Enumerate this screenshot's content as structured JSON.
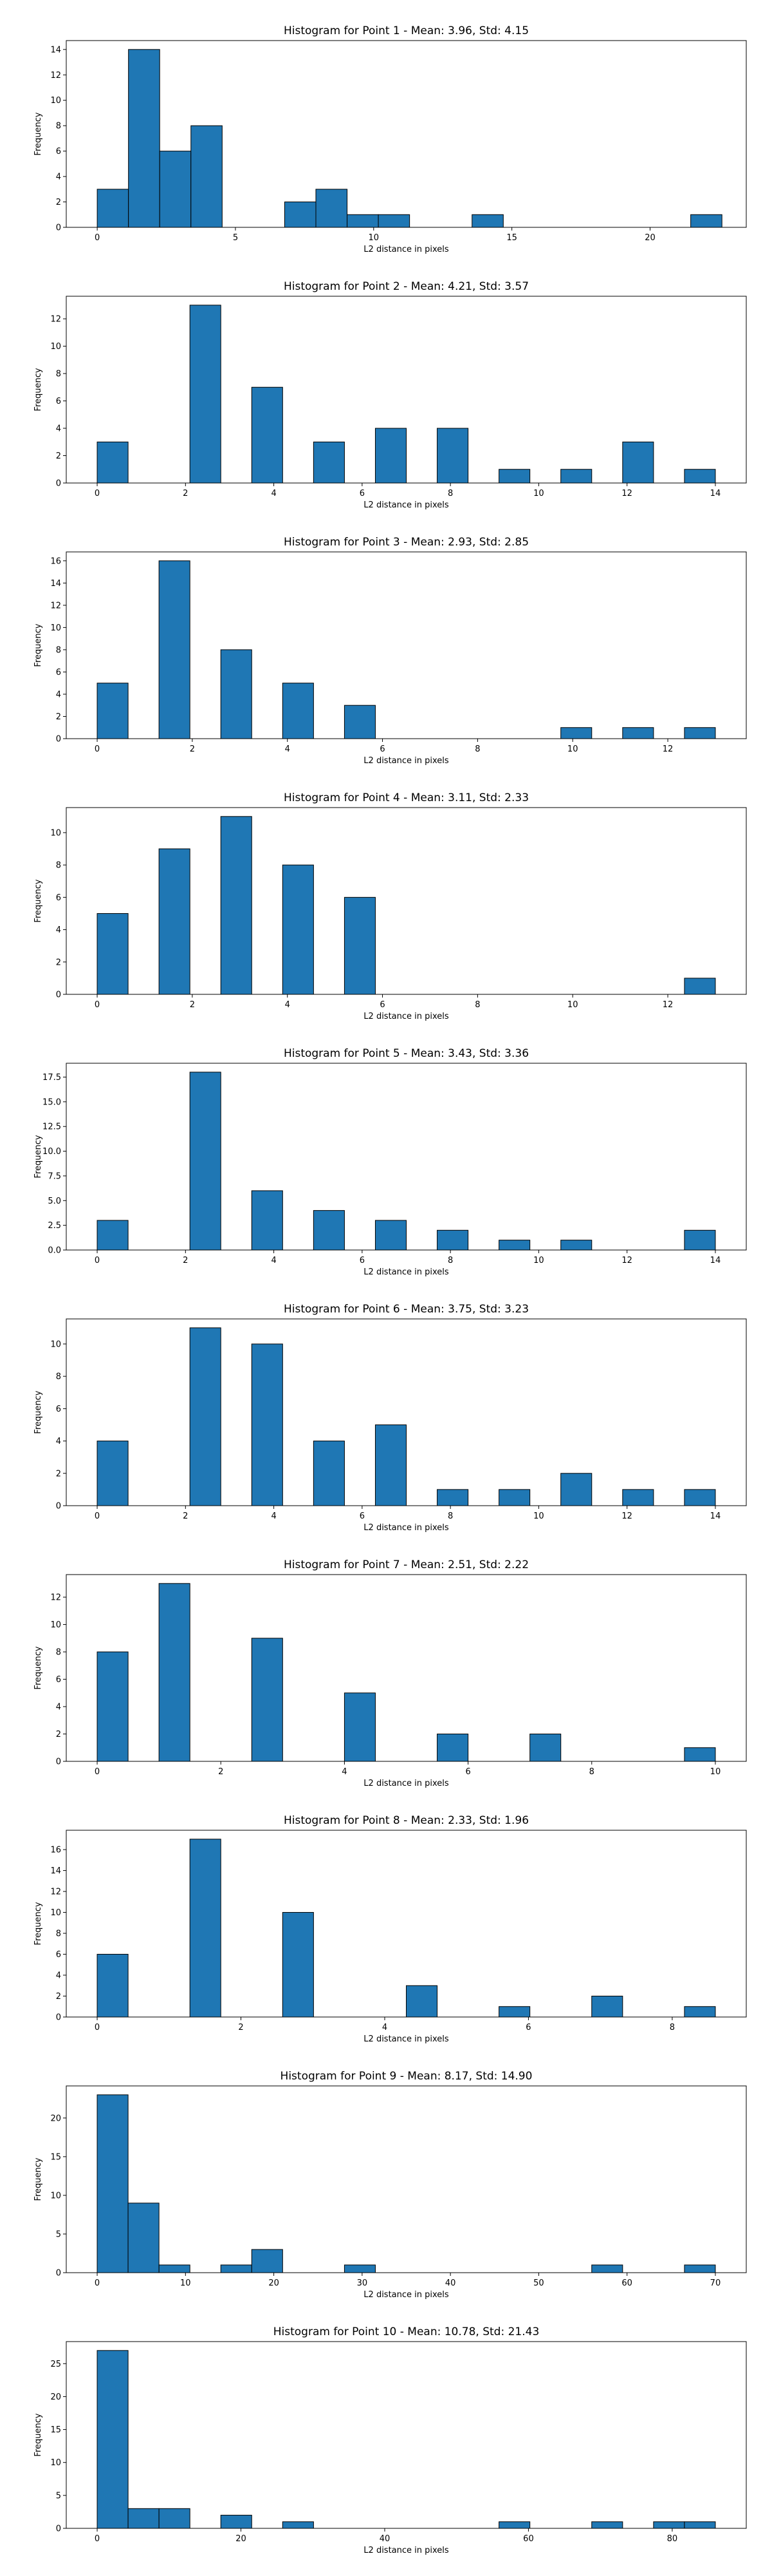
{
  "chart_data": [
    {
      "type": "bar",
      "title": "Histogram for Point 1 - Mean: 3.96, Std: 4.15",
      "xlabel": "L2 distance in pixels",
      "ylabel": "Frequency",
      "xlim": [
        -1.12,
        23.48
      ],
      "ylim": [
        0,
        14.7
      ],
      "xticks": [
        0,
        5,
        10,
        15,
        20
      ],
      "yticks": [
        0,
        2,
        4,
        6,
        8,
        10,
        12,
        14
      ],
      "bin_edges": [
        0,
        1.13,
        2.26,
        3.39,
        4.52,
        5.65,
        6.78,
        7.91,
        9.04,
        10.17,
        11.3,
        12.43,
        13.56,
        14.69,
        15.82,
        16.95,
        18.08,
        19.21,
        20.34,
        21.47,
        22.6
      ],
      "values": [
        3,
        14,
        6,
        8,
        0,
        0,
        2,
        3,
        1,
        1,
        0,
        0,
        1,
        0,
        0,
        0,
        0,
        0,
        0,
        1
      ]
    },
    {
      "type": "bar",
      "title": "Histogram for Point 2 - Mean: 4.21, Std: 3.57",
      "xlabel": "L2 distance in pixels",
      "ylabel": "Frequency",
      "xlim": [
        -0.7,
        14.7
      ],
      "ylim": [
        0,
        13.65
      ],
      "xticks": [
        0,
        2,
        4,
        6,
        8,
        10,
        12,
        14
      ],
      "yticks": [
        0,
        2,
        4,
        6,
        8,
        10,
        12
      ],
      "bin_edges": [
        0,
        0.7,
        1.4,
        2.1,
        2.8,
        3.5,
        4.2,
        4.9,
        5.6,
        6.3,
        7.0,
        7.7,
        8.4,
        9.1,
        9.8,
        10.5,
        11.2,
        11.9,
        12.6,
        13.3,
        14.0
      ],
      "values": [
        3,
        0,
        0,
        13,
        0,
        7,
        0,
        3,
        0,
        4,
        0,
        4,
        0,
        1,
        0,
        1,
        0,
        3,
        0,
        1
      ]
    },
    {
      "type": "bar",
      "title": "Histogram for Point 3 - Mean: 2.93, Std: 2.85",
      "xlabel": "L2 distance in pixels",
      "ylabel": "Frequency",
      "xlim": [
        -0.65,
        13.65
      ],
      "ylim": [
        0,
        16.8
      ],
      "xticks": [
        0,
        2,
        4,
        6,
        8,
        10,
        12
      ],
      "yticks": [
        0,
        2,
        4,
        6,
        8,
        10,
        12,
        14,
        16
      ],
      "bin_edges": [
        0,
        0.65,
        1.3,
        1.95,
        2.6,
        3.25,
        3.9,
        4.55,
        5.2,
        5.85,
        6.5,
        7.15,
        7.8,
        8.45,
        9.1,
        9.75,
        10.4,
        11.05,
        11.7,
        12.35,
        13.0
      ],
      "values": [
        5,
        0,
        16,
        0,
        8,
        0,
        5,
        0,
        3,
        0,
        0,
        0,
        0,
        0,
        0,
        1,
        0,
        1,
        0,
        1
      ]
    },
    {
      "type": "bar",
      "title": "Histogram for Point 4 - Mean: 3.11, Std: 2.33",
      "xlabel": "L2 distance in pixels",
      "ylabel": "Frequency",
      "xlim": [
        -0.65,
        13.65
      ],
      "ylim": [
        0,
        11.55
      ],
      "xticks": [
        0,
        2,
        4,
        6,
        8,
        10,
        12
      ],
      "yticks": [
        0,
        2,
        4,
        6,
        8,
        10
      ],
      "bin_edges": [
        0,
        0.65,
        1.3,
        1.95,
        2.6,
        3.25,
        3.9,
        4.55,
        5.2,
        5.85,
        6.5,
        7.15,
        7.8,
        8.45,
        9.1,
        9.75,
        10.4,
        11.05,
        11.7,
        12.35,
        13.0
      ],
      "values": [
        5,
        0,
        9,
        0,
        11,
        0,
        8,
        0,
        6,
        0,
        0,
        0,
        0,
        0,
        0,
        0,
        0,
        0,
        0,
        1
      ]
    },
    {
      "type": "bar",
      "title": "Histogram for Point 5 - Mean: 3.43, Std: 3.36",
      "xlabel": "L2 distance in pixels",
      "ylabel": "Frequency",
      "xlim": [
        -0.7,
        14.7
      ],
      "ylim": [
        0,
        18.9
      ],
      "xticks": [
        0,
        2,
        4,
        6,
        8,
        10,
        12,
        14
      ],
      "yticks": [
        "0.0",
        "2.5",
        "5.0",
        "7.5",
        "10.0",
        "12.5",
        "15.0",
        "17.5"
      ],
      "bin_edges": [
        0,
        0.7,
        1.4,
        2.1,
        2.8,
        3.5,
        4.2,
        4.9,
        5.6,
        6.3,
        7.0,
        7.7,
        8.4,
        9.1,
        9.8,
        10.5,
        11.2,
        11.9,
        12.6,
        13.3,
        14.0
      ],
      "values": [
        3,
        0,
        0,
        18,
        0,
        6,
        0,
        4,
        0,
        3,
        0,
        2,
        0,
        1,
        0,
        1,
        0,
        0,
        0,
        2
      ]
    },
    {
      "type": "bar",
      "title": "Histogram for Point 6 - Mean: 3.75, Std: 3.23",
      "xlabel": "L2 distance in pixels",
      "ylabel": "Frequency",
      "xlim": [
        -0.7,
        14.7
      ],
      "ylim": [
        0,
        11.55
      ],
      "xticks": [
        0,
        2,
        4,
        6,
        8,
        10,
        12,
        14
      ],
      "yticks": [
        0,
        2,
        4,
        6,
        8,
        10
      ],
      "bin_edges": [
        0,
        0.7,
        1.4,
        2.1,
        2.8,
        3.5,
        4.2,
        4.9,
        5.6,
        6.3,
        7.0,
        7.7,
        8.4,
        9.1,
        9.8,
        10.5,
        11.2,
        11.9,
        12.6,
        13.3,
        14.0
      ],
      "values": [
        4,
        0,
        0,
        11,
        0,
        10,
        0,
        4,
        0,
        5,
        0,
        1,
        0,
        1,
        0,
        2,
        0,
        1,
        0,
        1
      ]
    },
    {
      "type": "bar",
      "title": "Histogram for Point 7 - Mean: 2.51, Std: 2.22",
      "xlabel": "L2 distance in pixels",
      "ylabel": "Frequency",
      "xlim": [
        -0.5,
        10.5
      ],
      "ylim": [
        0,
        13.65
      ],
      "xticks": [
        0,
        2,
        4,
        6,
        8,
        10
      ],
      "yticks": [
        0,
        2,
        4,
        6,
        8,
        10,
        12
      ],
      "bin_edges": [
        0,
        0.5,
        1.0,
        1.5,
        2.0,
        2.5,
        3.0,
        3.5,
        4.0,
        4.5,
        5.0,
        5.5,
        6.0,
        6.5,
        7.0,
        7.5,
        8.0,
        8.5,
        9.0,
        9.5,
        10.0
      ],
      "values": [
        8,
        0,
        13,
        0,
        0,
        9,
        0,
        0,
        5,
        0,
        0,
        2,
        0,
        0,
        2,
        0,
        0,
        0,
        0,
        1
      ]
    },
    {
      "type": "bar",
      "title": "Histogram for Point 8 - Mean: 2.33, Std: 1.96",
      "xlabel": "L2 distance in pixels",
      "ylabel": "Frequency",
      "xlim": [
        -0.43,
        9.03
      ],
      "ylim": [
        0,
        17.85
      ],
      "xticks": [
        0,
        2,
        4,
        6,
        8
      ],
      "yticks": [
        0,
        2,
        4,
        6,
        8,
        10,
        12,
        14,
        16
      ],
      "bin_edges": [
        0,
        0.43,
        0.86,
        1.29,
        1.72,
        2.15,
        2.58,
        3.01,
        3.44,
        3.87,
        4.3,
        4.73,
        5.16,
        5.59,
        6.02,
        6.45,
        6.88,
        7.31,
        7.74,
        8.17,
        8.6
      ],
      "values": [
        6,
        0,
        0,
        17,
        0,
        0,
        10,
        0,
        0,
        0,
        3,
        0,
        0,
        1,
        0,
        0,
        2,
        0,
        0,
        1
      ]
    },
    {
      "type": "bar",
      "title": "Histogram for Point 9 - Mean: 8.17, Std: 14.90",
      "xlabel": "L2 distance in pixels",
      "ylabel": "Frequency",
      "xlim": [
        -3.5,
        73.5
      ],
      "ylim": [
        0,
        24.15
      ],
      "xticks": [
        0,
        10,
        20,
        30,
        40,
        50,
        60,
        70
      ],
      "yticks": [
        0,
        5,
        10,
        15,
        20
      ],
      "bin_edges": [
        0,
        3.5,
        7.0,
        10.5,
        14.0,
        17.5,
        21.0,
        24.5,
        28.0,
        31.5,
        35.0,
        38.5,
        42.0,
        45.5,
        49.0,
        52.5,
        56.0,
        59.5,
        63.0,
        66.5,
        70.0
      ],
      "values": [
        23,
        9,
        1,
        0,
        1,
        3,
        0,
        0,
        1,
        0,
        0,
        0,
        0,
        0,
        0,
        0,
        1,
        0,
        0,
        1
      ]
    },
    {
      "type": "bar",
      "title": "Histogram for Point 10 - Mean: 10.78, Std: 21.43",
      "xlabel": "L2 distance in pixels",
      "ylabel": "Frequency",
      "xlim": [
        -4.3,
        90.3
      ],
      "ylim": [
        0,
        28.35
      ],
      "xticks": [
        0,
        20,
        40,
        60,
        80
      ],
      "yticks": [
        0,
        5,
        10,
        15,
        20,
        25
      ],
      "bin_edges": [
        0,
        4.3,
        8.6,
        12.9,
        17.2,
        21.5,
        25.8,
        30.1,
        34.4,
        38.7,
        43.0,
        47.3,
        51.6,
        55.9,
        60.2,
        64.5,
        68.8,
        73.1,
        77.4,
        81.7,
        86.0
      ],
      "values": [
        27,
        3,
        3,
        0,
        2,
        0,
        1,
        0,
        0,
        0,
        0,
        0,
        0,
        1,
        0,
        0,
        1,
        0,
        1,
        1
      ]
    }
  ]
}
